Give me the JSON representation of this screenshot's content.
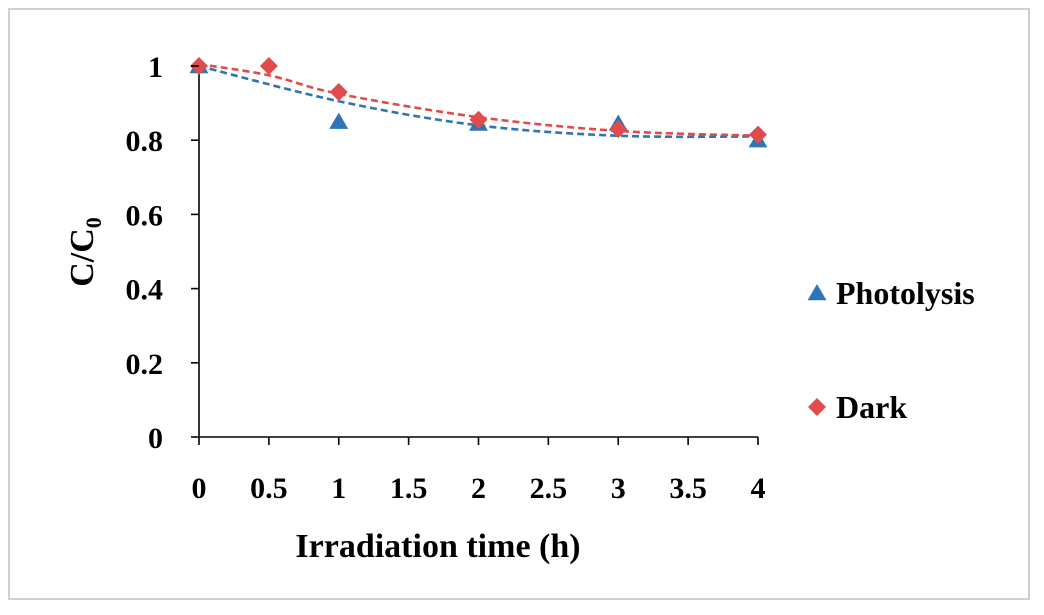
{
  "chart_data": {
    "type": "scatter",
    "title": "",
    "xlabel": "Irradiation time (h)",
    "ylabel_main": "C/C",
    "ylabel_sub": "0",
    "xlim": [
      0,
      4
    ],
    "ylim": [
      0,
      1
    ],
    "x_ticks": [
      "0",
      "0.5",
      "1",
      "1.5",
      "2",
      "2.5",
      "3",
      "3.5",
      "4"
    ],
    "y_ticks": [
      "0",
      "0.2",
      "0.4",
      "0.6",
      "0.8",
      "1"
    ],
    "legend_position": "right",
    "series": [
      {
        "name": "Photolysis",
        "marker": "triangle",
        "color": "#2e75b6",
        "x": [
          0,
          1,
          2,
          3,
          4
        ],
        "y": [
          1.0,
          0.85,
          0.845,
          0.845,
          0.8
        ],
        "trend": {
          "style": "dashed",
          "x": [
            0,
            1,
            2,
            3,
            4
          ],
          "y": [
            1.0,
            0.905,
            0.84,
            0.812,
            0.81
          ]
        }
      },
      {
        "name": "Dark",
        "marker": "diamond",
        "color": "#e04b4b",
        "x": [
          0,
          0.5,
          1,
          2,
          3,
          4
        ],
        "y": [
          1.0,
          1.0,
          0.93,
          0.855,
          0.83,
          0.815
        ],
        "trend": {
          "style": "dashed",
          "x": [
            0,
            0.5,
            1,
            2,
            3,
            4
          ],
          "y": [
            1.005,
            0.975,
            0.925,
            0.862,
            0.825,
            0.812
          ]
        }
      }
    ]
  }
}
